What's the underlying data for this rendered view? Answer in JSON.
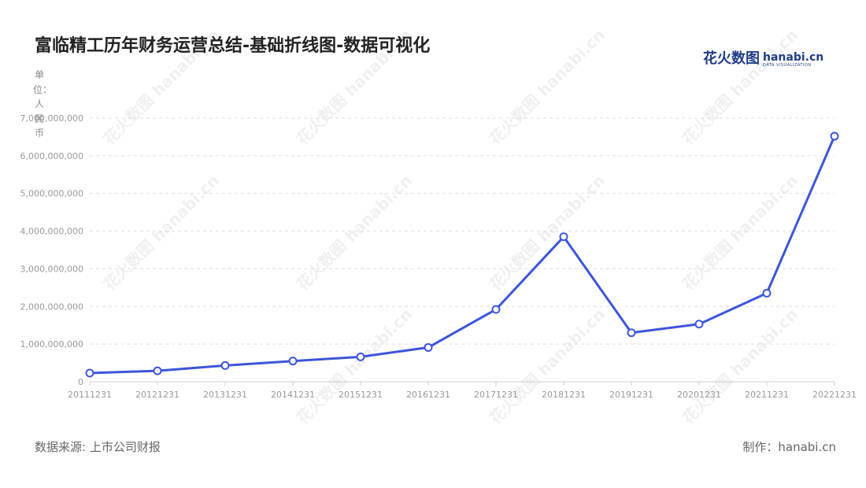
{
  "header": {
    "title": "富临精工历年财务运营总结-基础折线图-数据可视化"
  },
  "logo": {
    "cn": "花火数图",
    "en": "hanabi.cn",
    "sub": "DATA VISUALIZATION"
  },
  "watermark": "花火数图 hanabi.cn",
  "footer": {
    "source": "数据来源: 上市公司财报",
    "maker": "制作：hanabi.cn"
  },
  "colors": {
    "line": "#3d55d9",
    "grid": "#dddddd",
    "axis": "#cccccc"
  },
  "chart_data": {
    "type": "line",
    "title": "富临精工历年财务运营总结-基础折线图-数据可视化",
    "ylabel": "单位：人民币",
    "xlabel": "",
    "categories": [
      "20111231",
      "20121231",
      "20131231",
      "20141231",
      "20151231",
      "20161231",
      "20171231",
      "20181231",
      "20191231",
      "20201231",
      "20211231",
      "20221231"
    ],
    "series": [
      {
        "values": [
          230000000,
          290000000,
          430000000,
          550000000,
          660000000,
          910000000,
          1920000000,
          3850000000,
          1300000000,
          1530000000,
          2350000000,
          6520000000
        ]
      }
    ],
    "ylim": [
      0,
      7000000000
    ],
    "y_ticks": [
      "0",
      "1,000,000,000",
      "2,000,000,000",
      "3,000,000,000",
      "4,000,000,000",
      "5,000,000,000",
      "6,000,000,000",
      "7,000,000,000"
    ],
    "grid": true,
    "legend": "none"
  }
}
